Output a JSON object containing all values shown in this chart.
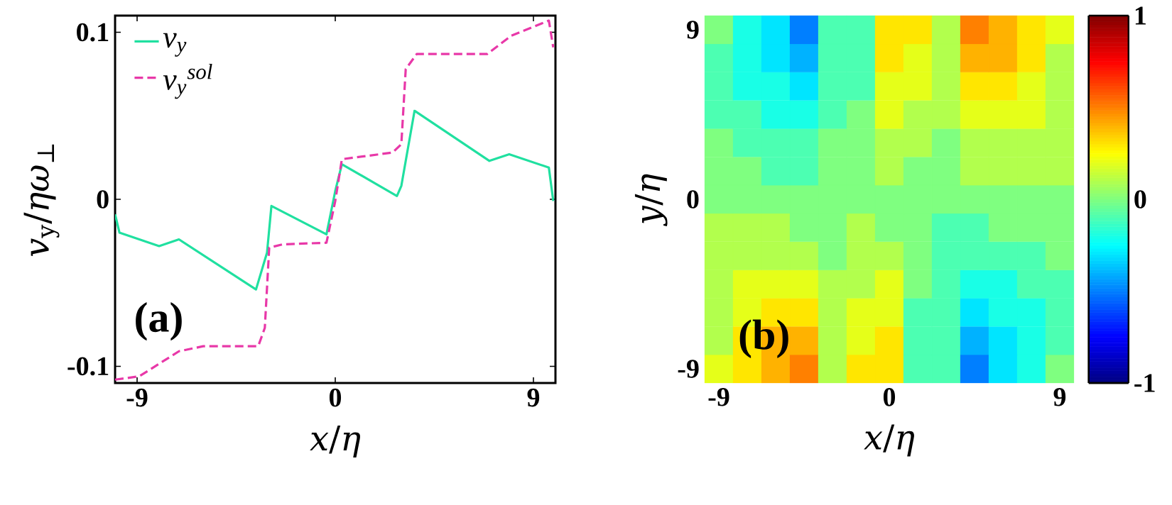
{
  "chart_data": [
    {
      "type": "line",
      "xlabel": "*x*/*η*",
      "ylabel": "*v*$_{y}$/*ηω*$_{⊥}$",
      "xlim": [
        -10,
        10
      ],
      "ylim": [
        -0.11,
        0.11
      ],
      "xticks": [
        -9,
        0,
        9
      ],
      "yticks": [
        -0.1,
        0,
        0.1
      ],
      "legend": "top left",
      "annotations": [
        "(a)"
      ],
      "series": [
        {
          "name": "*v*$_{y}$",
          "color": "#20e0a0",
          "line_style": "solid",
          "x": [
            -10,
            -9.8,
            -8,
            -7.1,
            -3.6,
            -3.1,
            -2.9,
            -0.4,
            0,
            0.3,
            2.8,
            3,
            3.6,
            7,
            7.9,
            9.7,
            9.9
          ],
          "values": [
            -0.009,
            -0.02,
            -0.028,
            -0.024,
            -0.054,
            -0.032,
            -0.004,
            -0.021,
            0.005,
            0.021,
            0.002,
            0.008,
            0.053,
            0.023,
            0.027,
            0.019,
            -0.001
          ]
        },
        {
          "name": "*v*$_{y}$$^{sol}$",
          "color": "#e838a8",
          "line_style": "dashed",
          "x": [
            -10,
            -8.9,
            -7.1,
            -6,
            -3.5,
            -3.2,
            -3,
            -2.4,
            -0.4,
            0,
            0.3,
            2.6,
            3,
            3.2,
            3.7,
            6.9,
            8,
            9.7,
            9.9
          ],
          "values": [
            -0.108,
            -0.106,
            -0.091,
            -0.088,
            -0.088,
            -0.077,
            -0.029,
            -0.027,
            -0.026,
            -0.001,
            0.024,
            0.028,
            0.033,
            0.078,
            0.087,
            0.087,
            0.098,
            0.107,
            0.091
          ]
        }
      ]
    },
    {
      "type": "heatmap",
      "xlabel": "*x*/*η*",
      "ylabel": "*y*/*η*",
      "annotations": [
        "(b)"
      ],
      "clim": [
        -1,
        1
      ],
      "cticks": [
        -1,
        0,
        1
      ],
      "categories": [
        "-9",
        null,
        null,
        null,
        null,
        null,
        "0",
        null,
        null,
        null,
        null,
        null,
        "9"
      ],
      "y_categories": [
        "9",
        null,
        null,
        null,
        null,
        null,
        "0",
        null,
        null,
        null,
        null,
        null,
        "-9"
      ],
      "cells": [
        [
          0.0,
          -0.2,
          -0.3,
          -0.5,
          -0.1,
          -0.1,
          0.3,
          0.3,
          0.1,
          0.5,
          0.4,
          0.3,
          0.2
        ],
        [
          -0.1,
          -0.2,
          -0.3,
          -0.4,
          -0.1,
          -0.1,
          0.3,
          0.2,
          0.1,
          0.4,
          0.4,
          0.3,
          0.1
        ],
        [
          -0.1,
          -0.2,
          -0.2,
          -0.3,
          -0.1,
          -0.1,
          0.2,
          0.2,
          0.1,
          0.3,
          0.3,
          0.2,
          0.1
        ],
        [
          -0.1,
          -0.1,
          -0.2,
          -0.2,
          -0.1,
          0,
          0.2,
          0.1,
          0.1,
          0.2,
          0.2,
          0.2,
          0.1
        ],
        [
          0,
          -0.1,
          -0.1,
          -0.1,
          0,
          0,
          0.1,
          0.1,
          0,
          0.1,
          0.1,
          0.1,
          0.1
        ],
        [
          0,
          0,
          -0.1,
          -0.1,
          0,
          0,
          0.1,
          0,
          0,
          0.1,
          0.1,
          0.1,
          0.1
        ],
        [
          0,
          0,
          0,
          0,
          0,
          0,
          0,
          0,
          0,
          0,
          0,
          0,
          0
        ],
        [
          0.1,
          0.1,
          0.1,
          0,
          0,
          0.1,
          0,
          0,
          -0.1,
          -0.1,
          0,
          0,
          0
        ],
        [
          0.1,
          0.1,
          0.1,
          0.1,
          0,
          0.1,
          0.1,
          0,
          -0.1,
          -0.1,
          -0.1,
          -0.1,
          0
        ],
        [
          0.1,
          0.2,
          0.2,
          0.2,
          0.1,
          0.1,
          0.2,
          0,
          -0.1,
          -0.2,
          -0.2,
          -0.1,
          -0.1
        ],
        [
          0.1,
          0.2,
          0.3,
          0.3,
          0.1,
          0.2,
          0.2,
          -0.1,
          -0.1,
          -0.3,
          -0.2,
          -0.2,
          -0.1
        ],
        [
          0.1,
          0.3,
          0.4,
          0.4,
          0.1,
          0.2,
          0.3,
          -0.1,
          -0.1,
          -0.4,
          -0.3,
          -0.2,
          -0.1
        ],
        [
          0.2,
          0.3,
          0.4,
          0.5,
          0.1,
          0.3,
          0.3,
          -0.1,
          -0.1,
          -0.5,
          -0.3,
          -0.2,
          0.0
        ]
      ]
    }
  ]
}
